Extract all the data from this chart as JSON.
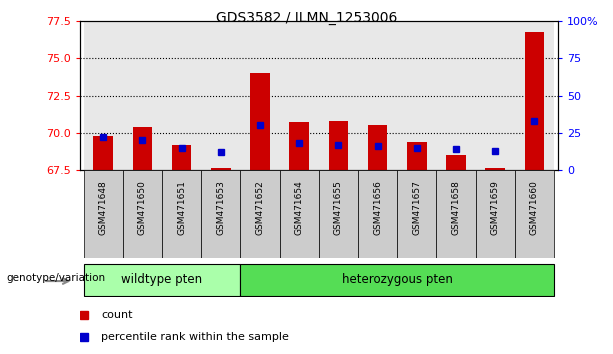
{
  "title": "GDS3582 / ILMN_1253006",
  "samples": [
    "GSM471648",
    "GSM471650",
    "GSM471651",
    "GSM471653",
    "GSM471652",
    "GSM471654",
    "GSM471655",
    "GSM471656",
    "GSM471657",
    "GSM471658",
    "GSM471659",
    "GSM471660"
  ],
  "count_values": [
    69.8,
    70.4,
    69.2,
    67.6,
    74.0,
    70.7,
    70.8,
    70.5,
    69.4,
    68.5,
    67.6,
    76.8
  ],
  "percentile_values": [
    22,
    20,
    15,
    12,
    30,
    18,
    17,
    16,
    15,
    14,
    13,
    33
  ],
  "ylim_left": [
    67.5,
    77.5
  ],
  "ylim_right": [
    0,
    100
  ],
  "yticks_left": [
    67.5,
    70.0,
    72.5,
    75.0,
    77.5
  ],
  "yticks_right": [
    0,
    25,
    50,
    75,
    100
  ],
  "ytick_labels_right": [
    "0",
    "25",
    "50",
    "75",
    "100%"
  ],
  "bar_color": "#cc0000",
  "dot_color": "#0000cc",
  "wildtype_indices": [
    0,
    1,
    2,
    3
  ],
  "hetero_indices": [
    4,
    5,
    6,
    7,
    8,
    9,
    10,
    11
  ],
  "wildtype_label": "wildtype pten",
  "hetero_label": "heterozygous pten",
  "wildtype_color": "#aaffaa",
  "hetero_color": "#55dd55",
  "col_bg_color": "#cccccc",
  "annotation_label": "genotype/variation",
  "legend_count": "count",
  "legend_percentile": "percentile rank within the sample",
  "bar_bottom": 67.5,
  "bar_width": 0.5,
  "grid_levels": [
    70.0,
    72.5,
    75.0
  ]
}
